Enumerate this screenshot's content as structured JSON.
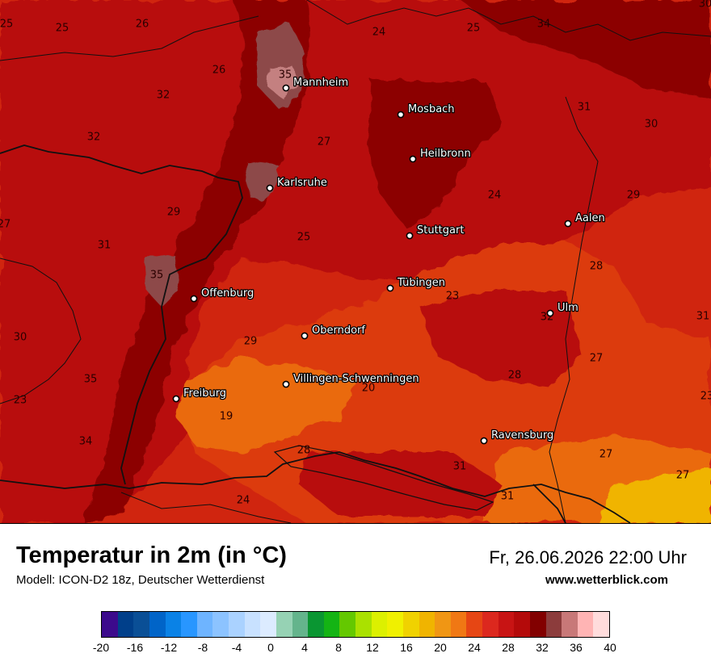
{
  "title": "Temperatur in 2m (in °C)",
  "model": "Modell: ICON-D2 18z, Deutscher Wetterdienst",
  "datetime": "Fr, 26.06.2026 22:00 Uhr",
  "website": "www.wetterblick.com",
  "colors": {
    "t19": "#ea6a10",
    "t23": "#dc3a10",
    "t25": "#d0250f",
    "t27": "#b8110f",
    "t31": "#8c0606",
    "t35": "#8d4848",
    "t37": "#c48080",
    "border": "#111111"
  },
  "cities": [
    {
      "name": "Mannheim"
    },
    {
      "name": "Mosbach"
    },
    {
      "name": "Heilbronn"
    },
    {
      "name": "Karlsruhe"
    },
    {
      "name": "Aalen"
    },
    {
      "name": "Stuttgart"
    },
    {
      "name": "Tübingen"
    },
    {
      "name": "Offenburg"
    },
    {
      "name": "Ulm"
    },
    {
      "name": "Oberndorf"
    },
    {
      "name": "Villingen-Schwenningen"
    },
    {
      "name": "Freiburg"
    },
    {
      "name": "Ravensburg"
    }
  ],
  "point_values": [
    "25",
    "25",
    "26",
    "24",
    "25",
    "34",
    "30",
    "35",
    "26",
    "32",
    "31",
    "32",
    "30",
    "27",
    "24",
    "29",
    "27",
    "29",
    "25",
    "31",
    "35",
    "31",
    "28",
    "23",
    "32",
    "30",
    "29",
    "35",
    "27",
    "28",
    "23",
    "20",
    "19",
    "34",
    "28",
    "31",
    "27",
    "27",
    "24",
    "31",
    "23"
  ],
  "legend": {
    "colors": [
      "#3c0a8c",
      "#003f8a",
      "#0a4f96",
      "#0064c8",
      "#0a82e6",
      "#2896ff",
      "#6eb4ff",
      "#8cc3ff",
      "#aad2ff",
      "#c8e1ff",
      "#dcebff",
      "#96d2b4",
      "#64b48c",
      "#0a9632",
      "#14b414",
      "#64c800",
      "#aae100",
      "#dcf000",
      "#f0f000",
      "#f0d200",
      "#f0b400",
      "#f09614",
      "#f07814",
      "#e64614",
      "#dc281e",
      "#c81414",
      "#b40a0a",
      "#820000",
      "#8c3c3c",
      "#c87878",
      "#ffb4b4",
      "#ffdcdc"
    ],
    "ticks": [
      "-20",
      "-16",
      "-12",
      "-8",
      "-4",
      "0",
      "4",
      "8",
      "12",
      "16",
      "20",
      "24",
      "28",
      "32",
      "36",
      "40"
    ]
  }
}
